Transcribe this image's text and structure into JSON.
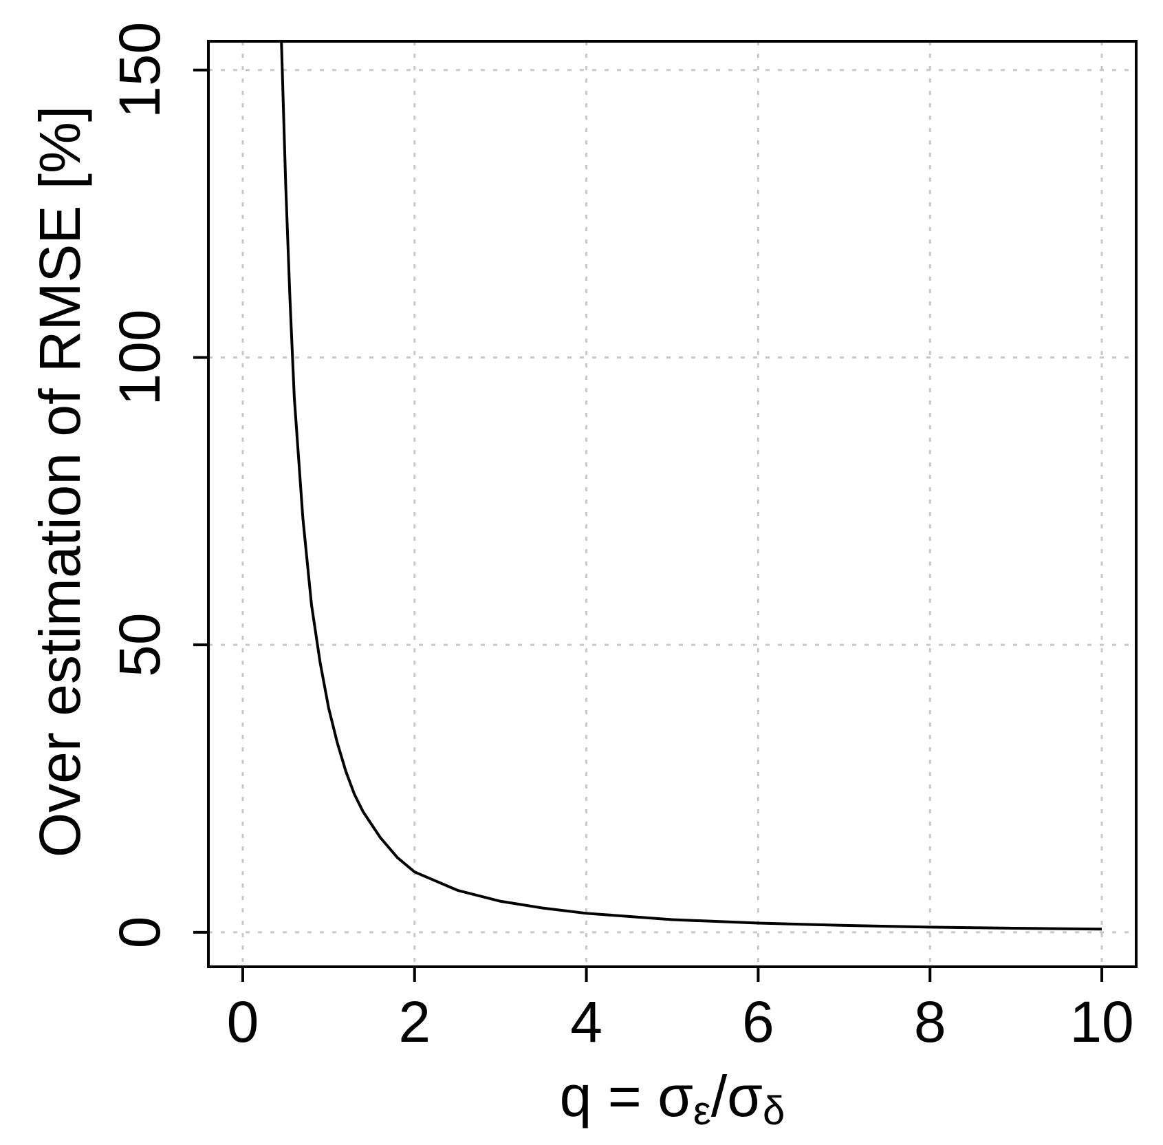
{
  "chart_data": {
    "type": "line",
    "xlabel": {
      "main": "q = σ",
      "sub1": "ε",
      "slash": "/σ",
      "sub2": "δ"
    },
    "ylabel": "Over estimation of RMSE [%]",
    "xlim": [
      -0.4,
      10.4
    ],
    "ylim": [
      -6,
      155
    ],
    "xticks": [
      0,
      2,
      4,
      6,
      8,
      10
    ],
    "yticks": [
      0,
      50,
      100,
      150
    ],
    "grid": true,
    "legend": "none",
    "series": [
      {
        "color": "#000000",
        "x": [
          0.45,
          0.5,
          0.55,
          0.6,
          0.7,
          0.8,
          0.9,
          1.0,
          1.1,
          1.2,
          1.3,
          1.4,
          1.6,
          1.8,
          2.0,
          2.5,
          3.0,
          3.5,
          4.0,
          5.0,
          6.0,
          7.0,
          8.0,
          9.0,
          10.0
        ],
        "y": [
          155,
          130,
          110,
          93,
          72,
          57,
          47,
          39,
          33,
          28,
          24,
          21,
          16.5,
          13,
          10.5,
          7.3,
          5.4,
          4.2,
          3.3,
          2.2,
          1.6,
          1.2,
          0.9,
          0.7,
          0.55
        ]
      }
    ]
  }
}
